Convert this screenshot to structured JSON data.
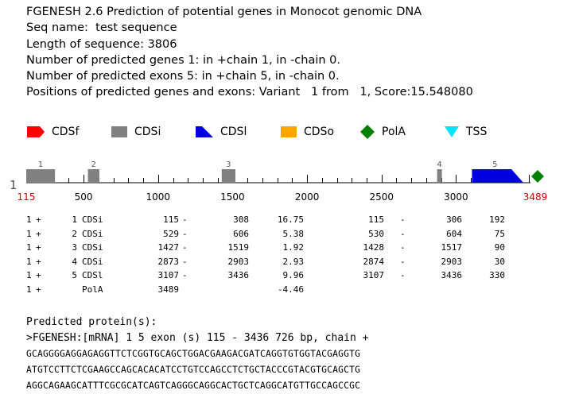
{
  "header": {
    "title": "FGENESH 2.6 Prediction of potential genes in Monocot genomic DNA",
    "seq_name": "Seq name:  test sequence",
    "length": "Length of sequence: 3806",
    "genes": "Number of predicted genes 1: in +chain 1, in -chain 0.",
    "exons": "Number of predicted exons 5: in +chain 5, in -chain 0.",
    "positions": "Positions of predicted genes and exons: Variant   1 from   1, Score:15.548080"
  },
  "legend": [
    {
      "label": "CDSf",
      "icon": "cdsf-icon",
      "color": "#ff0000"
    },
    {
      "label": "CDSi",
      "icon": "cdsi-icon",
      "color": "#808080"
    },
    {
      "label": "CDSl",
      "icon": "cdsl-icon",
      "color": "#0000e0"
    },
    {
      "label": "CDSo",
      "icon": "cdso-icon",
      "color": "#ffa500"
    },
    {
      "label": "PolA",
      "icon": "pola-icon",
      "color": "#008000"
    },
    {
      "label": "TSS",
      "icon": "tss-icon",
      "color": "#00e5ff"
    }
  ],
  "map": {
    "chain_label": "1",
    "start_label": "115",
    "end_label": "3489",
    "start": 115,
    "end": 3489,
    "ticks": [
      500,
      1000,
      1500,
      2000,
      2500,
      3000
    ],
    "minor_step": 100,
    "start_end_color": "#cc0000",
    "exon_color": "#808080",
    "last_exon_color": "#0000e0",
    "polya_color": "#008000",
    "exons": [
      {
        "num": "1",
        "start": 115,
        "end": 308
      },
      {
        "num": "2",
        "start": 529,
        "end": 606
      },
      {
        "num": "3",
        "start": 1427,
        "end": 1519
      },
      {
        "num": "4",
        "start": 2873,
        "end": 2903
      },
      {
        "num": "5",
        "start": 3107,
        "end": 3436
      }
    ],
    "polya": 3489
  },
  "table": [
    [
      "1",
      "+",
      "1",
      "CDSi",
      "115",
      "-",
      "308",
      "16.75",
      "115",
      "-",
      "306",
      "192"
    ],
    [
      "1",
      "+",
      "2",
      "CDSi",
      "529",
      "-",
      "606",
      "5.38",
      "530",
      "-",
      "604",
      "75"
    ],
    [
      "1",
      "+",
      "3",
      "CDSi",
      "1427",
      "-",
      "1519",
      "1.92",
      "1428",
      "-",
      "1517",
      "90"
    ],
    [
      "1",
      "+",
      "4",
      "CDSi",
      "2873",
      "-",
      "2903",
      "2.93",
      "2874",
      "-",
      "2903",
      "30"
    ],
    [
      "1",
      "+",
      "5",
      "CDSl",
      "3107",
      "-",
      "3436",
      "9.96",
      "3107",
      "-",
      "3436",
      "330"
    ],
    [
      "1",
      "+",
      "",
      "PolA",
      "3489",
      "",
      "",
      "-4.46",
      "",
      "",
      "",
      ""
    ]
  ],
  "protein": {
    "heading": "Predicted protein(s):",
    "header_line": ">FGENESH:[mRNA] 1 5 exon (s) 115 - 3436 726 bp, chain +",
    "seq_lines": [
      "GCAGGGGAGGAGAGGTTCTCGGTGCAGCTGGACGAAGACGATCAGGTGTGGTACGAGGTG",
      "ATGTCCTTCTCGAAGCCAGCACACATCCTGTCCAGCCTCTGCTACCCGTACGTGCAGCTG",
      "AGGCAGAAGCATTTCGCGCATCAGTCAGGGCAGGCACTGCTCAGGCATGTTGCCAGCCGC"
    ]
  }
}
